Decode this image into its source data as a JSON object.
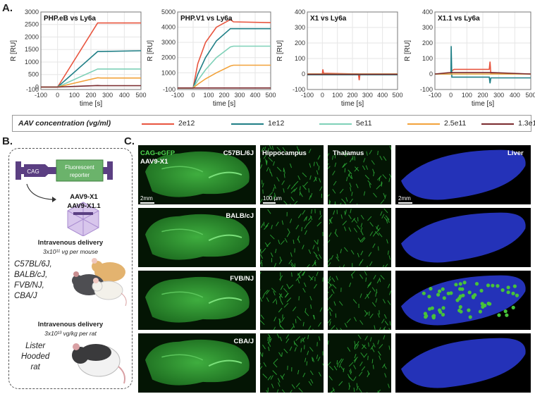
{
  "panels": {
    "a": "A.",
    "b": "B.",
    "c": "C."
  },
  "charts": [
    {
      "title": "PHP.eB vs Ly6a",
      "ylabel": "R [RU]",
      "xlabel": "time [s]",
      "xlim": [
        -100,
        500
      ],
      "ylim": [
        -100,
        3000
      ],
      "yticks": [
        "-100",
        "0",
        "500",
        "1000",
        "1500",
        "2000",
        "2500",
        "3000"
      ],
      "ytick_values": [
        -100,
        0,
        500,
        1000,
        1500,
        2000,
        2500,
        3000
      ],
      "xticks": [
        "-100",
        "0",
        "100",
        "200",
        "300",
        "400",
        "500"
      ],
      "xtick_values": [
        -100,
        0,
        100,
        200,
        300,
        400,
        500
      ],
      "series": [
        {
          "name": "2e12",
          "color": "#e8553f",
          "x": [
            -100,
            0,
            240,
            250,
            500
          ],
          "y": [
            0,
            0,
            2560,
            2560,
            2560
          ]
        },
        {
          "name": "1e12",
          "color": "#1f7f86",
          "x": [
            -100,
            0,
            240,
            260,
            500
          ],
          "y": [
            0,
            0,
            1420,
            1420,
            1450
          ]
        },
        {
          "name": "5e11",
          "color": "#7fd1b8",
          "x": [
            -100,
            0,
            240,
            260,
            500
          ],
          "y": [
            0,
            0,
            720,
            720,
            720
          ]
        },
        {
          "name": "2.5e11",
          "color": "#f2a23a",
          "x": [
            -100,
            0,
            240,
            260,
            500
          ],
          "y": [
            0,
            0,
            370,
            360,
            360
          ]
        },
        {
          "name": "1.3e11",
          "color": "#7a2a2e",
          "x": [
            -100,
            0,
            240,
            260,
            500
          ],
          "y": [
            0,
            0,
            60,
            55,
            55
          ]
        }
      ]
    },
    {
      "title": "PHP.V1 vs Ly6a",
      "ylabel": "R [RU]",
      "xlabel": "time [s]",
      "xlim": [
        -100,
        500
      ],
      "ylim": [
        -100,
        5000
      ],
      "yticks": [
        "-100",
        "1000",
        "2000",
        "3000",
        "4000",
        "5000"
      ],
      "ytick_values": [
        -100,
        1000,
        2000,
        3000,
        4000,
        5000
      ],
      "xticks": [
        "-100",
        "0",
        "100",
        "200",
        "300",
        "400",
        "500"
      ],
      "xtick_values": [
        -100,
        0,
        100,
        200,
        300,
        400,
        500
      ],
      "series": [
        {
          "name": "2e12",
          "color": "#e8553f",
          "x": [
            -100,
            0,
            30,
            80,
            150,
            240,
            260,
            500
          ],
          "y": [
            0,
            0,
            1600,
            3000,
            4000,
            4500,
            4350,
            4300
          ]
        },
        {
          "name": "1e12",
          "color": "#1f7f86",
          "x": [
            -100,
            0,
            30,
            80,
            150,
            240,
            260,
            500
          ],
          "y": [
            0,
            0,
            900,
            2000,
            3100,
            3900,
            3900,
            3900
          ]
        },
        {
          "name": "5e11",
          "color": "#7fd1b8",
          "x": [
            -100,
            0,
            30,
            80,
            150,
            240,
            260,
            500
          ],
          "y": [
            0,
            0,
            500,
            1200,
            2000,
            2700,
            2750,
            2750
          ]
        },
        {
          "name": "2.5e11",
          "color": "#f2a23a",
          "x": [
            -100,
            0,
            30,
            80,
            150,
            240,
            260,
            500
          ],
          "y": [
            0,
            0,
            250,
            600,
            1000,
            1450,
            1500,
            1500
          ]
        },
        {
          "name": "1.3e11",
          "color": "#7a2a2e",
          "x": [
            -100,
            0,
            240,
            260,
            500
          ],
          "y": [
            0,
            0,
            0,
            0,
            0
          ]
        }
      ]
    },
    {
      "title": "X1 vs Ly6a",
      "ylabel": "R [RU]",
      "xlabel": "time [s]",
      "xlim": [
        -100,
        500
      ],
      "ylim": [
        -100,
        400
      ],
      "yticks": [
        "-100",
        "0",
        "100",
        "200",
        "300",
        "400"
      ],
      "ytick_values": [
        -100,
        0,
        100,
        200,
        300,
        400
      ],
      "xticks": [
        "-100",
        "0",
        "100",
        "200",
        "300",
        "400",
        "500"
      ],
      "xtick_values": [
        -100,
        0,
        100,
        200,
        300,
        400,
        500
      ],
      "series": [
        {
          "name": "2e12",
          "color": "#e8553f",
          "x": [
            -100,
            0,
            3,
            8,
            240,
            245,
            250,
            500
          ],
          "y": [
            0,
            0,
            30,
            5,
            0,
            -40,
            0,
            0
          ]
        },
        {
          "name": "1e12",
          "color": "#1f7f86",
          "x": [
            -100,
            240,
            500
          ],
          "y": [
            -5,
            -5,
            -5
          ]
        },
        {
          "name": "5e11",
          "color": "#7fd1b8",
          "x": [
            -100,
            500
          ],
          "y": [
            0,
            0
          ]
        },
        {
          "name": "2.5e11",
          "color": "#f2a23a",
          "x": [
            -100,
            500
          ],
          "y": [
            0,
            0
          ]
        },
        {
          "name": "1.3e11",
          "color": "#7a2a2e",
          "x": [
            -100,
            500
          ],
          "y": [
            -2,
            -2
          ]
        }
      ]
    },
    {
      "title": "X1.1 vs Ly6a",
      "ylabel": "R [RU]",
      "xlabel": "time [s]",
      "xlim": [
        -100,
        500
      ],
      "ylim": [
        -100,
        400
      ],
      "yticks": [
        "-100",
        "0",
        "100",
        "200",
        "300",
        "400"
      ],
      "ytick_values": [
        -100,
        0,
        100,
        200,
        300,
        400
      ],
      "xticks": [
        "-100",
        "0",
        "100",
        "200",
        "300",
        "400",
        "500"
      ],
      "xtick_values": [
        -100,
        0,
        100,
        200,
        300,
        400,
        500
      ],
      "series": [
        {
          "name": "2e12",
          "color": "#e8553f",
          "x": [
            -100,
            0,
            5,
            20,
            240,
            245,
            250,
            500
          ],
          "y": [
            0,
            0,
            20,
            30,
            30,
            80,
            5,
            0
          ]
        },
        {
          "name": "1e12",
          "color": "#1f7f86",
          "x": [
            -100,
            0,
            2,
            6,
            240,
            245,
            250,
            500
          ],
          "y": [
            0,
            0,
            180,
            -20,
            -20,
            -60,
            -25,
            -25
          ]
        },
        {
          "name": "5e11",
          "color": "#7fd1b8",
          "x": [
            -100,
            500
          ],
          "y": [
            0,
            0
          ]
        },
        {
          "name": "2.5e11",
          "color": "#f2a23a",
          "x": [
            -100,
            500
          ],
          "y": [
            0,
            0
          ]
        },
        {
          "name": "1.3e11",
          "color": "#7a2a2e",
          "x": [
            -100,
            0,
            240,
            500
          ],
          "y": [
            0,
            10,
            10,
            0
          ]
        }
      ]
    }
  ],
  "legend": {
    "title": "AAV concentration (vg/ml)",
    "items": [
      {
        "label": "2e12",
        "color": "#e8553f"
      },
      {
        "label": "1e12",
        "color": "#1f7f86"
      },
      {
        "label": "5e11",
        "color": "#7fd1b8"
      },
      {
        "label": "2.5e11",
        "color": "#f2a23a"
      },
      {
        "label": "1.3e11",
        "color": "#7a2a2e"
      }
    ]
  },
  "panel_b": {
    "promoter": "CAG",
    "reporter_line1": "Fluorescent",
    "reporter_line2": "reporter",
    "capsid1": "AAV9-X1",
    "capsid2": "AAV9-X1.1",
    "delivery1": "Intravenous delivery",
    "dose1": "3x10¹¹ vg per mouse",
    "strains": [
      "C57BL/6J,",
      "BALB/cJ,",
      "FVB/NJ,",
      "CBA/J"
    ],
    "delivery2": "Intravenous delivery",
    "dose2": "3x10¹³ vg/kg per rat",
    "rat": [
      "Lister",
      "Hooded",
      "rat"
    ]
  },
  "panel_c": {
    "label_gfp": "CAG-eGFP",
    "label_vector": "AAV9-X1",
    "columns": [
      "Hippocampus",
      "Thalamus",
      "Liver"
    ],
    "rows": [
      "C57BL/6J",
      "BALB/cJ",
      "FVB/NJ",
      "CBA/J"
    ],
    "scale_brain": "2mm",
    "scale_region": "100 µm",
    "scale_liver": "2mm"
  }
}
